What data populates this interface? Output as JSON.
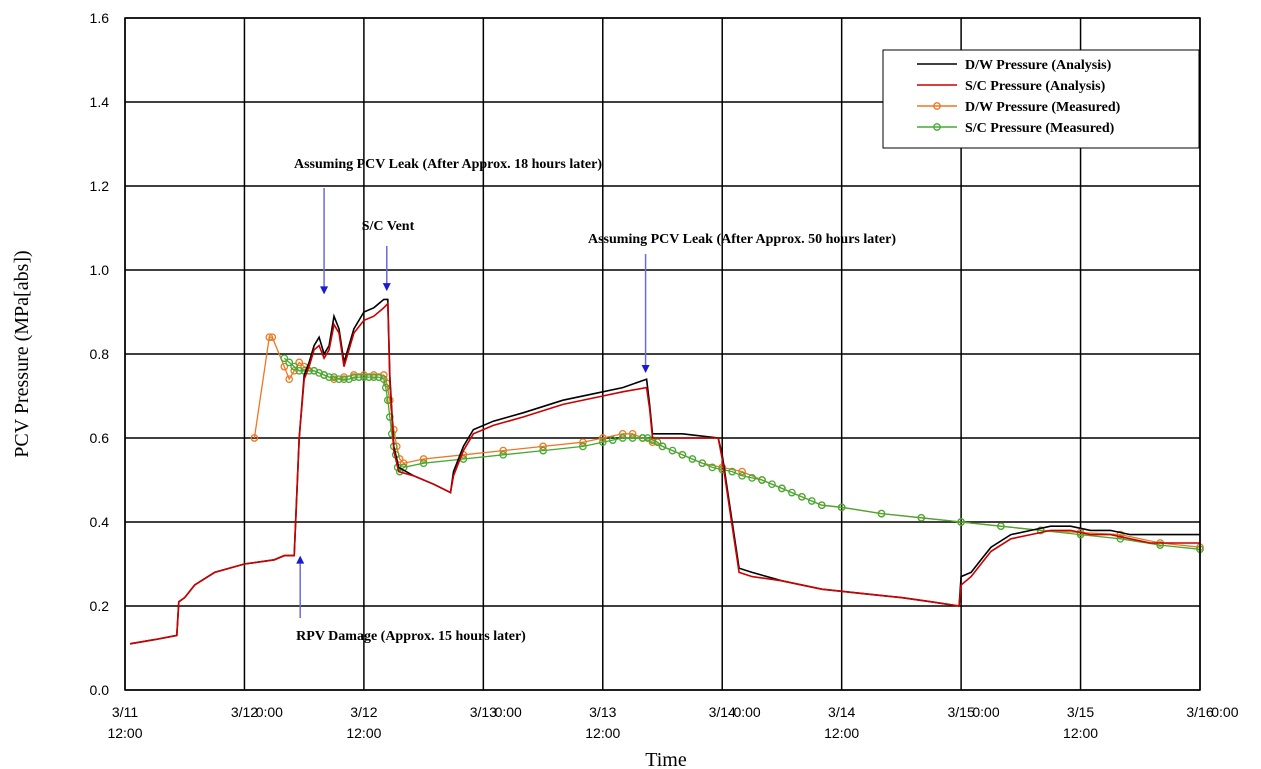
{
  "chart_data": {
    "type": "line",
    "xlabel": "Time",
    "ylabel": "PCV Pressure (MPa[abs])",
    "xlim": [
      0,
      108
    ],
    "ylim": [
      0.0,
      1.6
    ],
    "y_ticks": [
      "0.0",
      "0.2",
      "0.4",
      "0.6",
      "0.8",
      "1.0",
      "1.2",
      "1.4",
      "1.6"
    ],
    "x_ticks": [
      {
        "x": 0,
        "line1": "3/11",
        "line2": "12:00"
      },
      {
        "x": 12,
        "line1": "3/12",
        "line2": ""
      },
      {
        "x": 14.5,
        "line1": "0:00",
        "line2": ""
      },
      {
        "x": 24,
        "line1": "3/12",
        "line2": "12:00"
      },
      {
        "x": 36,
        "line1": "3/13",
        "line2": ""
      },
      {
        "x": 38.5,
        "line1": "0:00",
        "line2": ""
      },
      {
        "x": 48,
        "line1": "3/13",
        "line2": "12:00"
      },
      {
        "x": 60,
        "line1": "3/14",
        "line2": ""
      },
      {
        "x": 62.5,
        "line1": "0:00",
        "line2": ""
      },
      {
        "x": 72,
        "line1": "3/14",
        "line2": "12:00"
      },
      {
        "x": 84,
        "line1": "3/15",
        "line2": ""
      },
      {
        "x": 86.5,
        "line1": "0:00",
        "line2": ""
      },
      {
        "x": 96,
        "line1": "3/15",
        "line2": "12:00"
      },
      {
        "x": 108,
        "line1": "3/16",
        "line2": ""
      },
      {
        "x": 110.5,
        "line1": "0:00",
        "line2": ""
      }
    ],
    "grid": true,
    "legend_position": "top-right",
    "series": [
      {
        "name": "D/W Pressure (Analysis)",
        "color": "#000000",
        "marker": "none",
        "points": [
          [
            0.5,
            0.11
          ],
          [
            3,
            0.12
          ],
          [
            5.2,
            0.13
          ],
          [
            5.4,
            0.21
          ],
          [
            6,
            0.22
          ],
          [
            7,
            0.25
          ],
          [
            9,
            0.28
          ],
          [
            12,
            0.3
          ],
          [
            15,
            0.31
          ],
          [
            16,
            0.32
          ],
          [
            17,
            0.32
          ],
          [
            17.5,
            0.6
          ],
          [
            18,
            0.75
          ],
          [
            18.5,
            0.78
          ],
          [
            19,
            0.82
          ],
          [
            19.5,
            0.84
          ],
          [
            20,
            0.8
          ],
          [
            20.5,
            0.82
          ],
          [
            21,
            0.89
          ],
          [
            21.5,
            0.86
          ],
          [
            22,
            0.78
          ],
          [
            22.5,
            0.82
          ],
          [
            23,
            0.86
          ],
          [
            24,
            0.9
          ],
          [
            25,
            0.91
          ],
          [
            26,
            0.93
          ],
          [
            26.4,
            0.93
          ],
          [
            26.6,
            0.75
          ],
          [
            27,
            0.58
          ],
          [
            27.5,
            0.53
          ],
          [
            29,
            0.51
          ],
          [
            31,
            0.49
          ],
          [
            32.7,
            0.47
          ],
          [
            33,
            0.52
          ],
          [
            34,
            0.58
          ],
          [
            35,
            0.62
          ],
          [
            37,
            0.64
          ],
          [
            40,
            0.66
          ],
          [
            44,
            0.69
          ],
          [
            48,
            0.71
          ],
          [
            50,
            0.72
          ],
          [
            52.4,
            0.74
          ],
          [
            52.7,
            0.68
          ],
          [
            53,
            0.61
          ],
          [
            56,
            0.61
          ],
          [
            59.6,
            0.6
          ],
          [
            60,
            0.56
          ],
          [
            61,
            0.4
          ],
          [
            61.7,
            0.29
          ],
          [
            63,
            0.28
          ],
          [
            66,
            0.26
          ],
          [
            70,
            0.24
          ],
          [
            74,
            0.23
          ],
          [
            78,
            0.22
          ],
          [
            81,
            0.21
          ],
          [
            83.8,
            0.2
          ],
          [
            84,
            0.27
          ],
          [
            85,
            0.28
          ],
          [
            86,
            0.31
          ],
          [
            87,
            0.34
          ],
          [
            89,
            0.37
          ],
          [
            91,
            0.38
          ],
          [
            93,
            0.39
          ],
          [
            95,
            0.39
          ],
          [
            97,
            0.38
          ],
          [
            99,
            0.38
          ],
          [
            101,
            0.37
          ],
          [
            103,
            0.37
          ],
          [
            106,
            0.37
          ],
          [
            108,
            0.37
          ]
        ]
      },
      {
        "name": "S/C Pressure (Analysis)",
        "color": "#cc0000",
        "marker": "none",
        "points": [
          [
            0.5,
            0.11
          ],
          [
            3,
            0.12
          ],
          [
            5.2,
            0.13
          ],
          [
            5.4,
            0.21
          ],
          [
            6,
            0.22
          ],
          [
            7,
            0.25
          ],
          [
            9,
            0.28
          ],
          [
            12,
            0.3
          ],
          [
            15,
            0.31
          ],
          [
            16,
            0.32
          ],
          [
            17,
            0.32
          ],
          [
            17.5,
            0.6
          ],
          [
            18,
            0.74
          ],
          [
            18.5,
            0.77
          ],
          [
            19,
            0.81
          ],
          [
            19.5,
            0.82
          ],
          [
            20,
            0.79
          ],
          [
            20.5,
            0.81
          ],
          [
            21,
            0.87
          ],
          [
            21.5,
            0.85
          ],
          [
            22,
            0.77
          ],
          [
            22.5,
            0.81
          ],
          [
            23,
            0.85
          ],
          [
            24,
            0.88
          ],
          [
            25,
            0.89
          ],
          [
            26,
            0.91
          ],
          [
            26.4,
            0.92
          ],
          [
            26.6,
            0.74
          ],
          [
            27,
            0.57
          ],
          [
            27.5,
            0.52
          ],
          [
            29,
            0.51
          ],
          [
            31,
            0.49
          ],
          [
            32.7,
            0.47
          ],
          [
            33,
            0.51
          ],
          [
            34,
            0.57
          ],
          [
            35,
            0.61
          ],
          [
            37,
            0.63
          ],
          [
            40,
            0.65
          ],
          [
            44,
            0.68
          ],
          [
            48,
            0.7
          ],
          [
            50,
            0.71
          ],
          [
            52.4,
            0.72
          ],
          [
            52.7,
            0.67
          ],
          [
            53,
            0.6
          ],
          [
            56,
            0.6
          ],
          [
            59.6,
            0.6
          ],
          [
            60,
            0.55
          ],
          [
            61,
            0.39
          ],
          [
            61.7,
            0.28
          ],
          [
            63,
            0.27
          ],
          [
            66,
            0.26
          ],
          [
            70,
            0.24
          ],
          [
            74,
            0.23
          ],
          [
            78,
            0.22
          ],
          [
            81,
            0.21
          ],
          [
            83.8,
            0.2
          ],
          [
            84,
            0.25
          ],
          [
            85,
            0.27
          ],
          [
            86,
            0.3
          ],
          [
            87,
            0.33
          ],
          [
            89,
            0.36
          ],
          [
            91,
            0.37
          ],
          [
            93,
            0.38
          ],
          [
            95,
            0.38
          ],
          [
            97,
            0.37
          ],
          [
            99,
            0.37
          ],
          [
            101,
            0.36
          ],
          [
            103,
            0.35
          ],
          [
            106,
            0.35
          ],
          [
            108,
            0.35
          ]
        ]
      },
      {
        "name": "D/W Pressure (Measured)",
        "color": "#ee7722",
        "marker": "circle",
        "points": [
          [
            13,
            0.6
          ],
          [
            14.5,
            0.84
          ],
          [
            14.8,
            0.84
          ],
          [
            16,
            0.77
          ],
          [
            16.5,
            0.74
          ],
          [
            17,
            0.76
          ],
          [
            17.5,
            0.78
          ],
          [
            18,
            0.77
          ],
          [
            19,
            0.76
          ],
          [
            20,
            0.75
          ],
          [
            21,
            0.74
          ],
          [
            22,
            0.745
          ],
          [
            23,
            0.75
          ],
          [
            24,
            0.75
          ],
          [
            25,
            0.75
          ],
          [
            26,
            0.75
          ],
          [
            26.3,
            0.73
          ],
          [
            26.6,
            0.69
          ],
          [
            27,
            0.62
          ],
          [
            27.3,
            0.58
          ],
          [
            27.6,
            0.55
          ],
          [
            28,
            0.54
          ],
          [
            30,
            0.55
          ],
          [
            34,
            0.56
          ],
          [
            38,
            0.57
          ],
          [
            42,
            0.58
          ],
          [
            46,
            0.59
          ],
          [
            48,
            0.6
          ],
          [
            50,
            0.61
          ],
          [
            51,
            0.61
          ],
          [
            52,
            0.6
          ],
          [
            53,
            0.59
          ],
          [
            54,
            0.58
          ],
          [
            56,
            0.56
          ],
          [
            58,
            0.54
          ],
          [
            60,
            0.53
          ],
          [
            62,
            0.52
          ],
          [
            64,
            0.5
          ],
          [
            66,
            0.48
          ],
          [
            68,
            0.46
          ],
          [
            70,
            0.44
          ],
          [
            72,
            0.435
          ],
          [
            76,
            0.42
          ],
          [
            80,
            0.41
          ],
          [
            84,
            0.4
          ],
          [
            88,
            0.39
          ],
          [
            92,
            0.38
          ],
          [
            96,
            0.375
          ],
          [
            100,
            0.37
          ],
          [
            104,
            0.35
          ],
          [
            108,
            0.34
          ]
        ]
      },
      {
        "name": "S/C Pressure (Measured)",
        "color": "#44aa33",
        "marker": "circle",
        "points": [
          [
            16,
            0.79
          ],
          [
            16.5,
            0.78
          ],
          [
            17,
            0.77
          ],
          [
            17.5,
            0.76
          ],
          [
            18,
            0.76
          ],
          [
            18.5,
            0.76
          ],
          [
            19,
            0.76
          ],
          [
            19.5,
            0.755
          ],
          [
            20,
            0.75
          ],
          [
            20.5,
            0.745
          ],
          [
            21,
            0.745
          ],
          [
            21.5,
            0.74
          ],
          [
            22,
            0.74
          ],
          [
            22.5,
            0.74
          ],
          [
            23,
            0.745
          ],
          [
            23.5,
            0.745
          ],
          [
            24,
            0.745
          ],
          [
            24.5,
            0.745
          ],
          [
            25,
            0.745
          ],
          [
            25.5,
            0.745
          ],
          [
            26,
            0.74
          ],
          [
            26.2,
            0.72
          ],
          [
            26.4,
            0.69
          ],
          [
            26.6,
            0.65
          ],
          [
            26.8,
            0.61
          ],
          [
            27,
            0.58
          ],
          [
            27.2,
            0.56
          ],
          [
            27.4,
            0.53
          ],
          [
            27.6,
            0.52
          ],
          [
            28,
            0.53
          ],
          [
            30,
            0.54
          ],
          [
            34,
            0.55
          ],
          [
            38,
            0.56
          ],
          [
            42,
            0.57
          ],
          [
            46,
            0.58
          ],
          [
            48,
            0.59
          ],
          [
            49,
            0.595
          ],
          [
            50,
            0.6
          ],
          [
            51,
            0.6
          ],
          [
            52,
            0.6
          ],
          [
            52.5,
            0.6
          ],
          [
            53,
            0.595
          ],
          [
            53.5,
            0.59
          ],
          [
            54,
            0.58
          ],
          [
            55,
            0.57
          ],
          [
            56,
            0.56
          ],
          [
            57,
            0.55
          ],
          [
            58,
            0.54
          ],
          [
            59,
            0.53
          ],
          [
            60,
            0.525
          ],
          [
            61,
            0.52
          ],
          [
            62,
            0.51
          ],
          [
            63,
            0.505
          ],
          [
            64,
            0.5
          ],
          [
            65,
            0.49
          ],
          [
            66,
            0.48
          ],
          [
            67,
            0.47
          ],
          [
            68,
            0.46
          ],
          [
            69,
            0.45
          ],
          [
            70,
            0.44
          ],
          [
            72,
            0.435
          ],
          [
            76,
            0.42
          ],
          [
            80,
            0.41
          ],
          [
            84,
            0.4
          ],
          [
            88,
            0.39
          ],
          [
            92,
            0.38
          ],
          [
            96,
            0.37
          ],
          [
            100,
            0.36
          ],
          [
            104,
            0.345
          ],
          [
            108,
            0.335
          ]
        ]
      }
    ],
    "annotations": [
      {
        "text": "Assuming PCV Leak (After Approx. 18 hours later)",
        "x": 20,
        "y": 0.93
      },
      {
        "text": "S/C Vent",
        "x": 26.3,
        "y": 0.945
      },
      {
        "text": "Assuming PCV Leak (After Approx. 50 hours later)",
        "x": 52.3,
        "y": 0.75
      },
      {
        "text": "RPV Damage (Approx. 15 hours later)",
        "x": 17.6,
        "y": 0.32
      }
    ]
  }
}
